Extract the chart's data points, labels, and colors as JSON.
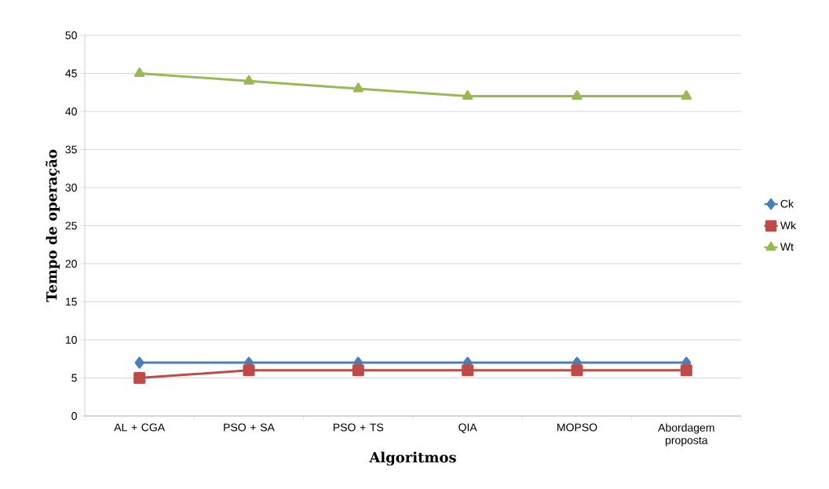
{
  "chart_data": {
    "type": "line",
    "xlabel": "Algoritmos",
    "ylabel": "Tempo de operação",
    "categories": [
      "AL + CGA",
      "PSO + SA",
      "PSO + TS",
      "QIA",
      "MOPSO",
      "Abordagem proposta"
    ],
    "series": [
      {
        "name": "Ck",
        "color": "#4a7ebb",
        "marker": "diamond",
        "values": [
          7,
          7,
          7,
          7,
          7,
          7
        ]
      },
      {
        "name": "Wk",
        "color": "#be4b48",
        "marker": "square",
        "values": [
          5,
          6,
          6,
          6,
          6,
          6
        ]
      },
      {
        "name": "Wt",
        "color": "#98b954",
        "marker": "triangle",
        "values": [
          45,
          44,
          43,
          42,
          42,
          42
        ]
      }
    ],
    "ylim": [
      0,
      50
    ],
    "yticks": [
      0,
      5,
      10,
      15,
      20,
      25,
      30,
      35,
      40,
      45,
      50
    ],
    "grid": "y",
    "legend": "right",
    "line_style": "solid"
  }
}
